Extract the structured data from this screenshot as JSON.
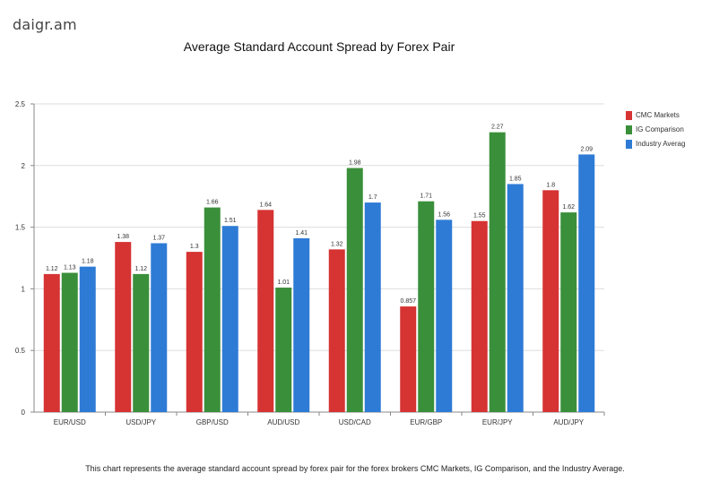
{
  "brand": {
    "name": "daigr.am"
  },
  "chart_data": {
    "type": "bar",
    "title": "Average Standard Account Spread by Forex Pair",
    "xlabel": "",
    "ylabel": "",
    "ylim": [
      0,
      2.5
    ],
    "yticks": [
      {
        "value": 0,
        "label": "0"
      },
      {
        "value": 0.5,
        "label": "0.5"
      },
      {
        "value": 1,
        "label": "1"
      },
      {
        "value": 1.5,
        "label": "1.5"
      },
      {
        "value": 2,
        "label": "2"
      },
      {
        "value": 2.5,
        "label": "2.5"
      }
    ],
    "grid": true,
    "legend_position": "right",
    "categories": [
      "EUR/USD",
      "USD/JPY",
      "GBP/USD",
      "AUD/USD",
      "USD/CAD",
      "EUR/GBP",
      "EUR/JPY",
      "AUD/JPY"
    ],
    "series": [
      {
        "name": "CMC Markets",
        "legend_label": "CMC Markets",
        "color": "#d63333",
        "values": [
          1.12,
          1.38,
          1.3,
          1.64,
          1.32,
          0.857,
          1.55,
          1.8
        ],
        "labels": [
          "1.12",
          "1.38",
          "1.3",
          "1.64",
          "1.32",
          "0.857",
          "1.55",
          "1.8"
        ]
      },
      {
        "name": "IG Comparison",
        "legend_label": "IG Comparison",
        "color": "#3a8f3a",
        "values": [
          1.13,
          1.12,
          1.66,
          1.01,
          1.98,
          1.71,
          2.27,
          1.62
        ],
        "labels": [
          "1.13",
          "1.12",
          "1.66",
          "1.01",
          "1.98",
          "1.71",
          "2.27",
          "1.62"
        ]
      },
      {
        "name": "Industry Average",
        "legend_label": "Industry Averag",
        "color": "#2e7bd6",
        "values": [
          1.18,
          1.37,
          1.51,
          1.41,
          1.7,
          1.56,
          1.85,
          2.09
        ],
        "labels": [
          "1.18",
          "1.37",
          "1.51",
          "1.41",
          "1.7",
          "1.56",
          "1.85",
          "2.09"
        ]
      }
    ],
    "caption": "This chart represents the average standard account spread by forex pair for the forex brokers CMC Markets, IG Comparison, and the Industry Average."
  }
}
